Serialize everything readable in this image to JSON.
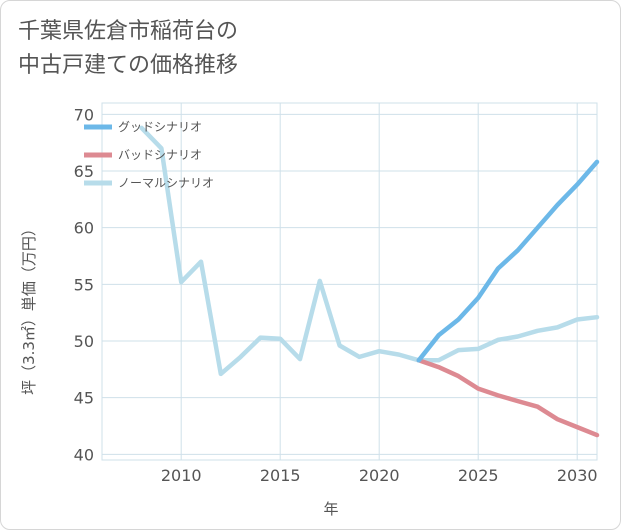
{
  "title_lines": [
    "千葉県佐倉市稲荷台の",
    "中古戸建ての価格推移"
  ],
  "colors": {
    "good": "#6cb8e8",
    "bad": "#dd8a92",
    "normal": "#b7dcea",
    "grid": "#cfe0ea",
    "text": "#555555"
  },
  "chart_data": {
    "type": "line",
    "title": "千葉県佐倉市稲荷台の中古戸建ての価格推移",
    "xlabel": "年",
    "ylabel": "坪（3.3㎡）単価（万円）",
    "xlim": [
      2006,
      2031
    ],
    "ylim": [
      39.5,
      71
    ],
    "x_ticks": [
      2010,
      2015,
      2020,
      2025,
      2030
    ],
    "y_ticks": [
      40,
      45,
      50,
      55,
      60,
      65,
      70
    ],
    "grid": true,
    "legend_position": "top-left",
    "series": [
      {
        "name": "グッドシナリオ",
        "color_key": "good",
        "x": [
          2022,
          2023,
          2024,
          2025,
          2026,
          2027,
          2028,
          2029,
          2030,
          2031
        ],
        "y": [
          48.3,
          50.5,
          51.9,
          53.8,
          56.4,
          58.0,
          60.0,
          62.0,
          63.8,
          65.8
        ]
      },
      {
        "name": "バッドシナリオ",
        "color_key": "bad",
        "x": [
          2022,
          2023,
          2024,
          2025,
          2026,
          2027,
          2028,
          2029,
          2030,
          2031
        ],
        "y": [
          48.3,
          47.7,
          46.9,
          45.8,
          45.2,
          44.7,
          44.2,
          43.1,
          42.4,
          41.7
        ]
      },
      {
        "name": "ノーマルシナリオ",
        "color_key": "normal",
        "x": [
          2008,
          2009,
          2010,
          2011,
          2012,
          2013,
          2014,
          2015,
          2016,
          2017,
          2018,
          2019,
          2020,
          2021,
          2022,
          2023,
          2024,
          2025,
          2026,
          2027,
          2028,
          2029,
          2030,
          2031
        ],
        "y": [
          68.8,
          67.0,
          55.2,
          57.0,
          47.1,
          48.6,
          50.3,
          50.2,
          48.4,
          55.3,
          49.6,
          48.6,
          49.1,
          48.8,
          48.3,
          48.3,
          49.2,
          49.3,
          50.1,
          50.4,
          50.9,
          51.2,
          51.9,
          52.1
        ]
      }
    ]
  }
}
